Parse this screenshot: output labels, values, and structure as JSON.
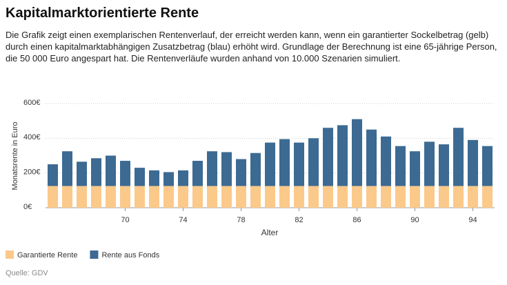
{
  "chart_data": {
    "type": "stacked_bar",
    "title": "Kapitalmarktorientierte Rente",
    "subtitle": "Die Grafik zeigt einen exemplarischen Rentenverlauf, der erreicht werden kann, wenn ein garantierter Sockelbetrag (gelb) durch einen kapitalmarktabhängigen Zusatzbetrag (blau) erhöht wird. Grundlage der Berechnung ist eine 65-jährige Person, die 50 000 Euro angespart hat. Die Rentenverläufe wurden anhand von 10.000 Szenarien simuliert.",
    "y_label": "Monatsrente in Euro",
    "x_label": "Alter",
    "source": "Quelle: GDV",
    "categories": [
      null,
      null,
      null,
      null,
      null,
      "70",
      null,
      null,
      null,
      "74",
      null,
      null,
      null,
      "78",
      null,
      null,
      null,
      "82",
      null,
      null,
      null,
      "86",
      null,
      null,
      null,
      "90",
      null,
      null,
      null,
      "94",
      null
    ],
    "series": [
      {
        "name": "Garantierte Rente",
        "color": "#fbc98a",
        "values": [
          125,
          125,
          125,
          125,
          125,
          125,
          125,
          125,
          125,
          125,
          125,
          125,
          125,
          125,
          125,
          125,
          125,
          125,
          125,
          125,
          125,
          125,
          125,
          125,
          125,
          125,
          125,
          125,
          125,
          125,
          125
        ]
      },
      {
        "name": "Rente aus Fonds",
        "color": "#3c6a92",
        "values": [
          125,
          200,
          140,
          160,
          175,
          145,
          105,
          90,
          80,
          90,
          145,
          200,
          195,
          155,
          190,
          250,
          270,
          250,
          275,
          335,
          350,
          385,
          325,
          285,
          230,
          200,
          255,
          240,
          335,
          265,
          230
        ]
      }
    ],
    "ylim": [
      0,
      600
    ],
    "yticks": [
      {
        "value": 0,
        "label": "0€"
      },
      {
        "value": 200,
        "label": "200€"
      },
      {
        "value": 400,
        "label": "400€"
      },
      {
        "value": 600,
        "label": "600€"
      }
    ],
    "grid": true,
    "legend": "bottom-left"
  }
}
